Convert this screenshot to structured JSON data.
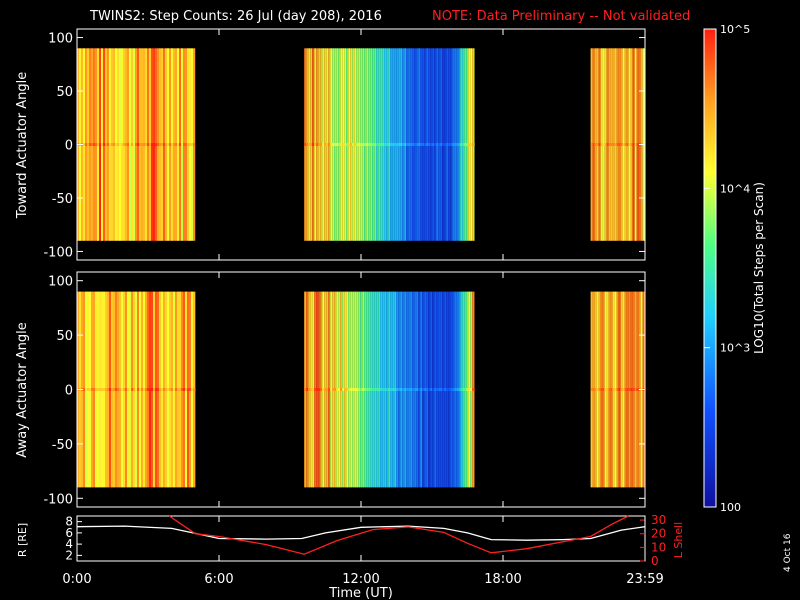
{
  "title": {
    "main": "TWINS2: Step Counts: 26 Jul (day 208), 2016",
    "note": "NOTE: Data Preliminary -- Not validated",
    "note_color": "#ff2020"
  },
  "side_date": "4 Oct 16",
  "chart_data": [
    {
      "type": "heatmap",
      "name": "toward",
      "ylabel": "Toward Actuator Angle",
      "ylim": [
        -108,
        108
      ],
      "data_ylim": [
        -90,
        90
      ],
      "yticks": [
        "100",
        "50",
        "0",
        "-50",
        "-100"
      ],
      "ytick_values": [
        100,
        50,
        0,
        -50,
        -100
      ],
      "xlim_hours": [
        0,
        24
      ],
      "data_segments_hours": [
        [
          0,
          5
        ],
        [
          9.6,
          16.8
        ],
        [
          21.7,
          24
        ]
      ],
      "segment_profile": [
        [
          0.82,
          0.85,
          0.8,
          0.78,
          0.83,
          0.86,
          0.8,
          0.84
        ],
        [
          0.9,
          0.78,
          0.65,
          0.55,
          0.4,
          0.25,
          0.18,
          0.2,
          0.82
        ],
        [
          0.84,
          0.8,
          0.86,
          0.82,
          0.8
        ]
      ]
    },
    {
      "type": "heatmap",
      "name": "away",
      "ylabel": "Away Actuator Angle",
      "ylim": [
        -108,
        108
      ],
      "data_ylim": [
        -90,
        90
      ],
      "yticks": [
        "100",
        "50",
        "0",
        "-50",
        "-100"
      ],
      "ytick_values": [
        100,
        50,
        0,
        -50,
        -100
      ],
      "xlim_hours": [
        0,
        24
      ],
      "data_segments_hours": [
        [
          0,
          5
        ],
        [
          9.6,
          16.8
        ],
        [
          21.7,
          24
        ]
      ],
      "segment_profile": [
        [
          0.8,
          0.84,
          0.82,
          0.78,
          0.85,
          0.8,
          0.83,
          0.86
        ],
        [
          0.9,
          0.78,
          0.64,
          0.52,
          0.38,
          0.24,
          0.17,
          0.2,
          0.82
        ],
        [
          0.83,
          0.8,
          0.85,
          0.82,
          0.8
        ]
      ]
    },
    {
      "type": "line",
      "name": "orbit",
      "xlabel": "Time (UT)",
      "xticks": [
        "0:00",
        "6:00",
        "12:00",
        "18:00",
        "23:59"
      ],
      "xtick_hours": [
        0,
        6,
        12,
        18,
        24
      ],
      "left_axis": {
        "label": "R [RE]",
        "ylim": [
          1,
          9
        ],
        "ticks": [
          "8",
          "6",
          "4",
          "2"
        ],
        "tick_values": [
          8,
          6,
          4,
          2
        ]
      },
      "right_axis": {
        "label": "L Shell",
        "ylim": [
          0,
          33
        ],
        "ticks": [
          "30",
          "20",
          "10",
          "0"
        ],
        "tick_values": [
          30,
          20,
          10,
          0
        ]
      },
      "series": [
        {
          "name": "R",
          "color": "#ffffff",
          "axis": "left",
          "x": [
            0,
            2,
            4,
            5,
            6,
            8,
            9.5,
            10.5,
            12,
            14,
            15.5,
            16.5,
            17.5,
            19,
            20.5,
            21.7,
            22.5,
            23,
            24
          ],
          "y": [
            7.1,
            7.2,
            6.8,
            5.9,
            5.0,
            4.9,
            5.0,
            6.0,
            7.0,
            7.2,
            6.8,
            6.0,
            4.8,
            4.7,
            4.8,
            5.0,
            5.9,
            6.5,
            7.1
          ]
        },
        {
          "name": "L Shell",
          "color": "#ff2020",
          "axis": "right",
          "x": [
            3.9,
            5,
            6,
            8,
            9.6,
            11,
            12.5,
            14,
            15.5,
            16.5,
            17.5,
            19,
            20.5,
            21.7,
            22.6,
            23.3
          ],
          "y": [
            33,
            20,
            18,
            12,
            5,
            15,
            23,
            25,
            21,
            13,
            6,
            9,
            14,
            18,
            27,
            33
          ]
        }
      ]
    }
  ],
  "colorbar": {
    "label": "LOG10(Total Steps per Scan)",
    "ticks": [
      "10^5",
      "10^4",
      "10^3",
      "100"
    ],
    "tick_exponents": [
      5,
      4,
      3,
      2
    ]
  }
}
